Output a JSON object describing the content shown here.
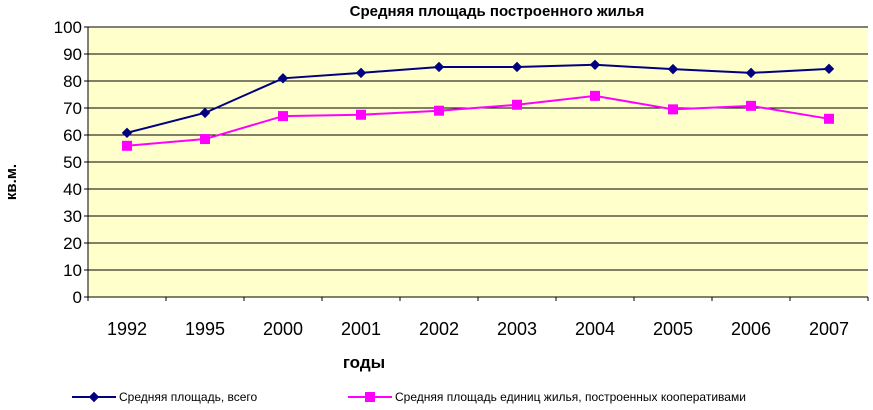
{
  "chart_data": {
    "type": "line",
    "title": "Средняя площадь построенного жилья",
    "xlabel": "годы",
    "ylabel": "кв.м.",
    "categories": [
      "1992",
      "1995",
      "2000",
      "2001",
      "2002",
      "2003",
      "2004",
      "2005",
      "2006",
      "2007"
    ],
    "ylim": [
      0,
      100
    ],
    "yticks": [
      "0",
      "10",
      "20",
      "30",
      "40",
      "50",
      "60",
      "70",
      "80",
      "90",
      "100"
    ],
    "grid": true,
    "legend_position": "bottom",
    "plot_background": "#FFFFCC",
    "series": [
      {
        "name": "Средняя площадь, всего",
        "color": "#000080",
        "marker": "diamond",
        "values": [
          60.8,
          68.2,
          81.0,
          83.0,
          85.2,
          85.2,
          86.0,
          84.4,
          83.0,
          84.5
        ]
      },
      {
        "name": "Средняя площадь единиц жилья, построенных кооперативами",
        "color": "#FF00FF",
        "marker": "square",
        "values": [
          56.0,
          58.5,
          67.0,
          67.5,
          69.0,
          71.2,
          74.5,
          69.5,
          70.8,
          66.0
        ]
      }
    ]
  }
}
